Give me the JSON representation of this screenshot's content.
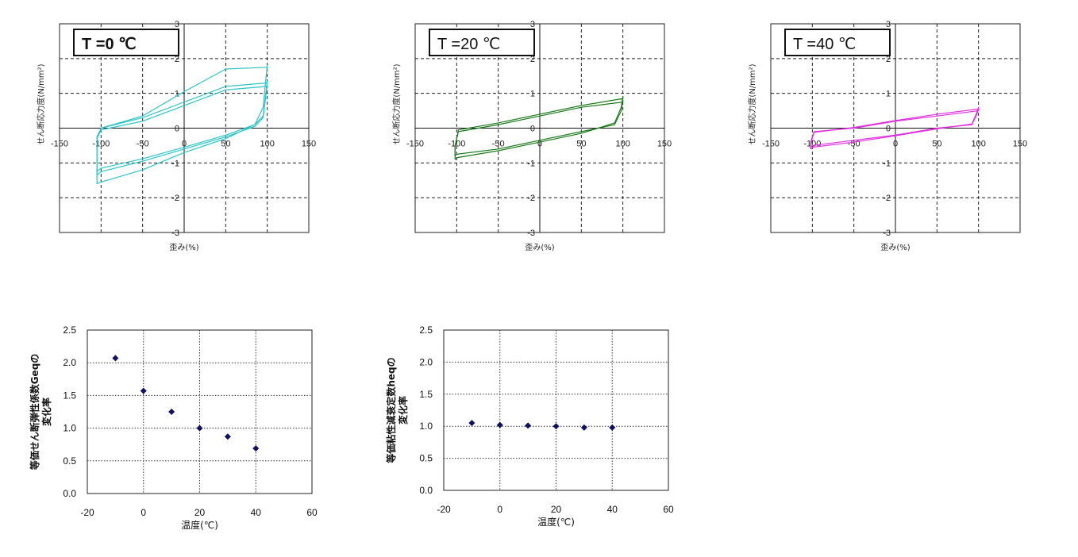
{
  "chart_data": [
    {
      "type": "line",
      "title": "T =0 ℃",
      "title_bold": true,
      "xlabel": "歪み(%)",
      "ylabel": "せん断応力度(N/mm²)",
      "xlim": [
        -150,
        150
      ],
      "ylim": [
        -3,
        3
      ],
      "xticks": [
        "-150",
        "-100",
        "-50",
        "0",
        "50",
        "100",
        "150"
      ],
      "yticks": [
        "3",
        "2",
        "1",
        "0",
        "-1",
        "-2",
        "-3"
      ],
      "grid": "dashed",
      "color": "#2ec4c8",
      "loops": [
        {
          "up": [
            [
              -100,
              -1.25
            ],
            [
              -50,
              -0.95
            ],
            [
              0,
              -0.6
            ],
            [
              50,
              -0.25
            ],
            [
              85,
              0.05
            ],
            [
              95,
              0.3
            ]
          ],
          "down": [
            [
              100,
              1.2
            ],
            [
              50,
              1.1
            ],
            [
              0,
              0.65
            ],
            [
              -50,
              0.2
            ],
            [
              -100,
              -0.05
            ],
            [
              -105,
              -0.3
            ]
          ],
          "x_max": 100,
          "y_max": 1.25,
          "x_min": -105,
          "y_min": -1.35
        },
        {
          "up": [
            [
              -100,
              -1.15
            ],
            [
              -50,
              -0.88
            ],
            [
              0,
              -0.55
            ],
            [
              50,
              -0.2
            ],
            [
              85,
              0.1
            ],
            [
              95,
              0.35
            ]
          ],
          "down": [
            [
              100,
              1.3
            ],
            [
              50,
              1.2
            ],
            [
              0,
              0.75
            ],
            [
              -50,
              0.3
            ],
            [
              -100,
              -0.0
            ],
            [
              -105,
              -0.25
            ]
          ],
          "x_max": 100,
          "y_max": 1.35,
          "x_min": -105,
          "y_min": -1.25
        },
        {
          "up": [
            [
              -100,
              -1.55
            ],
            [
              -50,
              -1.2
            ],
            [
              0,
              -0.7
            ],
            [
              50,
              -0.3
            ],
            [
              85,
              0.1
            ],
            [
              95,
              0.6
            ]
          ],
          "down": [
            [
              100,
              1.75
            ],
            [
              50,
              1.7
            ],
            [
              0,
              1.05
            ],
            [
              -50,
              0.35
            ],
            [
              -100,
              0.0
            ],
            [
              -105,
              -0.3
            ]
          ],
          "x_max": 100,
          "y_max": 1.8,
          "x_min": -105,
          "y_min": -1.6
        }
      ]
    },
    {
      "type": "line",
      "title": "T =20 ℃",
      "title_bold": false,
      "xlabel": "歪み(%)",
      "ylabel": "せん断応力度(N/mm²)",
      "xlim": [
        -150,
        150
      ],
      "ylim": [
        -3,
        3
      ],
      "xticks": [
        "-150",
        "-100",
        "-50",
        "0",
        "50",
        "100",
        "150"
      ],
      "yticks": [
        "3",
        "2",
        "1",
        "0",
        "-1",
        "-2",
        "-3"
      ],
      "grid": "dashed",
      "color": "#1e7a1e",
      "loops": [
        {
          "up": [
            [
              -100,
              -0.75
            ],
            [
              -50,
              -0.6
            ],
            [
              0,
              -0.35
            ],
            [
              50,
              -0.1
            ],
            [
              90,
              0.1
            ],
            [
              98,
              0.5
            ]
          ],
          "down": [
            [
              100,
              0.75
            ],
            [
              50,
              0.6
            ],
            [
              0,
              0.35
            ],
            [
              -50,
              0.1
            ],
            [
              -98,
              -0.1
            ],
            [
              -102,
              -0.5
            ]
          ],
          "x_max": 100,
          "y_max": 0.8,
          "x_min": -102,
          "y_min": -0.8
        },
        {
          "up": [
            [
              -100,
              -0.85
            ],
            [
              -50,
              -0.65
            ],
            [
              0,
              -0.4
            ],
            [
              50,
              -0.15
            ],
            [
              90,
              0.15
            ],
            [
              98,
              0.6
            ]
          ],
          "down": [
            [
              100,
              0.85
            ],
            [
              50,
              0.65
            ],
            [
              0,
              0.4
            ],
            [
              -50,
              0.15
            ],
            [
              -98,
              -0.05
            ],
            [
              -102,
              -0.55
            ]
          ],
          "x_max": 100,
          "y_max": 0.9,
          "x_min": -102,
          "y_min": -0.9
        }
      ]
    },
    {
      "type": "line",
      "title": "T =40 ℃",
      "title_bold": false,
      "xlabel": "歪み(%)",
      "ylabel": "せん断応力度(N/mm²)",
      "xlim": [
        -150,
        150
      ],
      "ylim": [
        -3,
        3
      ],
      "xticks": [
        "-150",
        "-100",
        "-50",
        "0",
        "50",
        "100",
        "150"
      ],
      "yticks": [
        "3",
        "2",
        "1",
        "0",
        "-1",
        "-2",
        "-3"
      ],
      "grid": "dashed",
      "color": "#e030e0",
      "loops": [
        {
          "up": [
            [
              -100,
              -0.5
            ],
            [
              -50,
              -0.35
            ],
            [
              0,
              -0.2
            ],
            [
              50,
              0.0
            ],
            [
              92,
              0.1
            ],
            [
              98,
              0.4
            ]
          ],
          "down": [
            [
              100,
              0.5
            ],
            [
              50,
              0.35
            ],
            [
              0,
              0.2
            ],
            [
              -50,
              0.0
            ],
            [
              -98,
              -0.1
            ],
            [
              -102,
              -0.4
            ]
          ],
          "x_max": 100,
          "y_max": 0.55,
          "x_min": -102,
          "y_min": -0.55
        },
        {
          "up": [
            [
              -100,
              -0.55
            ],
            [
              -50,
              -0.4
            ],
            [
              0,
              -0.22
            ],
            [
              50,
              -0.02
            ],
            [
              92,
              0.12
            ],
            [
              98,
              0.45
            ]
          ],
          "down": [
            [
              100,
              0.55
            ],
            [
              50,
              0.4
            ],
            [
              0,
              0.22
            ],
            [
              -50,
              0.02
            ],
            [
              -98,
              -0.12
            ],
            [
              -102,
              -0.45
            ]
          ],
          "x_max": 100,
          "y_max": 0.6,
          "x_min": -102,
          "y_min": -0.6
        }
      ]
    },
    {
      "type": "scatter",
      "xlabel": "温度(℃)",
      "ylabel_lines": [
        "等価せん断弾性係数Geqの",
        "変化率"
      ],
      "xlim": [
        -20,
        60
      ],
      "ylim": [
        0,
        2.5
      ],
      "xticks": [
        "-20",
        "0",
        "20",
        "40",
        "60"
      ],
      "yticks": [
        "2.5",
        "2.0",
        "1.5",
        "1.0",
        "0.5",
        "0.0"
      ],
      "grid": "dotted",
      "color": "#101060",
      "x": [
        -10,
        0,
        10,
        20,
        30,
        40
      ],
      "y": [
        2.07,
        1.57,
        1.25,
        1.0,
        0.87,
        0.69
      ]
    },
    {
      "type": "scatter",
      "xlabel": "温度(℃)",
      "ylabel_lines": [
        "等価粘性減衰定数heqの",
        "変化率"
      ],
      "xlim": [
        -20,
        60
      ],
      "ylim": [
        0,
        2.5
      ],
      "xticks": [
        "-20",
        "0",
        "20",
        "40",
        "60"
      ],
      "yticks": [
        "2.5",
        "2.0",
        "1.5",
        "1.0",
        "0.5",
        "0.0"
      ],
      "grid": "dotted",
      "color": "#101060",
      "x": [
        -10,
        0,
        10,
        20,
        30,
        40
      ],
      "y": [
        1.05,
        1.02,
        1.01,
        1.0,
        0.98,
        0.98
      ]
    }
  ]
}
